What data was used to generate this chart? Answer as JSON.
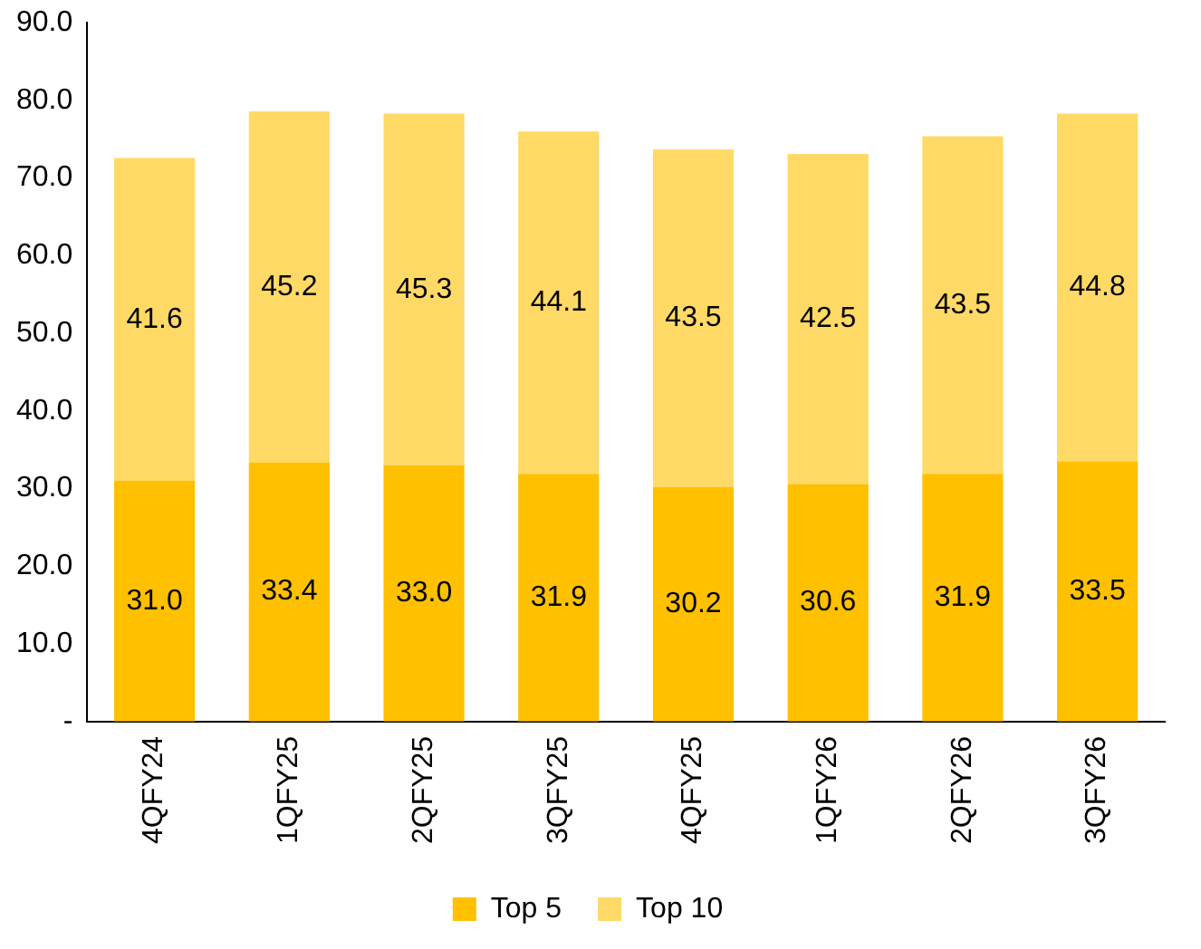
{
  "chart_data": {
    "type": "bar",
    "stacked": true,
    "categories": [
      "4QFY24",
      "1QFY25",
      "2QFY25",
      "3QFY25",
      "4QFY25",
      "1QFY26",
      "2QFY26",
      "3QFY26"
    ],
    "series": [
      {
        "name": "Top 5",
        "color": "#ffc000",
        "values": [
          31.0,
          33.4,
          33.0,
          31.9,
          30.2,
          30.6,
          31.9,
          33.5
        ],
        "value_labels": [
          "31.0",
          "33.4",
          "33.0",
          "31.9",
          "30.2",
          "30.6",
          "31.9",
          "33.5"
        ]
      },
      {
        "name": "Top 10",
        "color": "#ffd966",
        "values": [
          41.6,
          45.2,
          45.3,
          44.1,
          43.5,
          42.5,
          43.5,
          44.8
        ],
        "value_labels": [
          "41.6",
          "45.2",
          "45.3",
          "44.1",
          "43.5",
          "42.5",
          "43.5",
          "44.8"
        ]
      }
    ],
    "ylim": [
      0,
      90
    ],
    "yticks": [
      {
        "value": 0,
        "label": "-"
      },
      {
        "value": 10,
        "label": "10.0"
      },
      {
        "value": 20,
        "label": "20.0"
      },
      {
        "value": 30,
        "label": "30.0"
      },
      {
        "value": 40,
        "label": "40.0"
      },
      {
        "value": 50,
        "label": "50.0"
      },
      {
        "value": 60,
        "label": "60.0"
      },
      {
        "value": 70,
        "label": "70.0"
      },
      {
        "value": 80,
        "label": "80.0"
      },
      {
        "value": 90,
        "label": "90.0"
      }
    ],
    "grid": false,
    "legend": "bottom"
  }
}
